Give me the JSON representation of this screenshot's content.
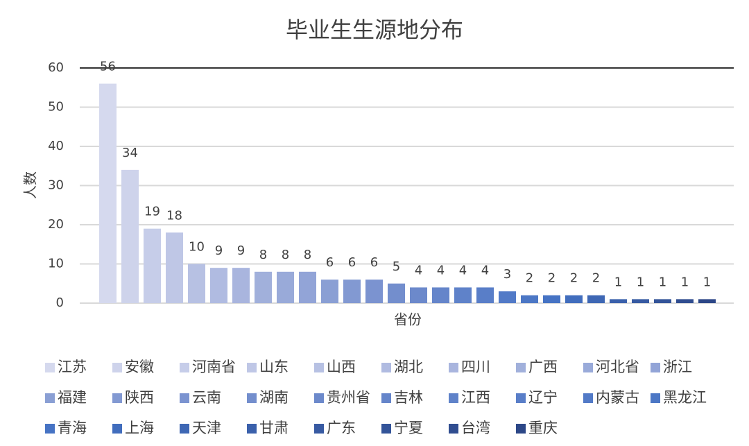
{
  "chart_data": {
    "type": "bar",
    "title": "毕业生生源地分布",
    "y_label": "人数",
    "x_label": "省份",
    "categories": [
      "江苏",
      "安徽",
      "河南省",
      "山东",
      "山西",
      "湖北",
      "四川",
      "广西",
      "河北省",
      "浙江",
      "福建",
      "陕西",
      "云南",
      "湖南",
      "贵州省",
      "吉林",
      "江西",
      "辽宁",
      "内蒙古",
      "黑龙江",
      "青海",
      "上海",
      "天津",
      "甘肃",
      "广东",
      "宁夏",
      "台湾",
      "重庆"
    ],
    "values": [
      56,
      34,
      19,
      18,
      10,
      9,
      9,
      8,
      8,
      8,
      6,
      6,
      6,
      5,
      4,
      4,
      4,
      4,
      3,
      2,
      2,
      2,
      2,
      1,
      1,
      1,
      1,
      1
    ],
    "color_stops": [
      "#d5d9ee",
      "#a3b1dc",
      "#6f8bcc",
      "#4472c4",
      "#2c4787"
    ],
    "ylim": [
      0,
      60
    ],
    "yticks": [
      0,
      10,
      20,
      30,
      40,
      50,
      60
    ],
    "grid": true,
    "legend": "bottom"
  }
}
